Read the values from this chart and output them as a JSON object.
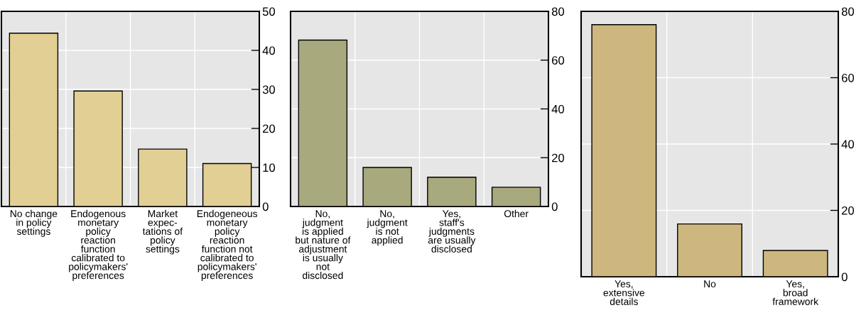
{
  "chart_data": [
    {
      "type": "bar",
      "categories": [
        "No change\nin policy\nsettings",
        "Endogenous\nmonetary\npolicy\nreaction\nfunction\ncalibrated to\npolicymakers'\npreferences",
        "Market\nexpec-\ntations of\npolicy\nsettings",
        "Endogeneous\nmonetary\npolicy\nreaction\nfunction not\ncalibrated to\npolicymakers'\npreferences"
      ],
      "values": [
        44.4,
        29.6,
        14.7,
        11.0
      ],
      "color": "#e2cf94",
      "ylim": [
        0,
        50
      ],
      "yticks": [
        0,
        10,
        20,
        30,
        40,
        50
      ],
      "grid": true
    },
    {
      "type": "bar",
      "categories": [
        "No,\njudgment\nis applied\nbut nature of\nadjustment\nis usually\nnot\ndisclosed",
        "No,\njudgment\nis not\napplied",
        "Yes,\nstaff's\njudgments\nare usually\ndisclosed",
        "Other"
      ],
      "values": [
        68.2,
        16.0,
        12.0,
        7.9
      ],
      "color": "#a8a97c",
      "ylim": [
        0,
        80
      ],
      "yticks": [
        0,
        20,
        40,
        60,
        80
      ],
      "grid": true
    },
    {
      "type": "bar",
      "categories": [
        "Yes,\nextensive\ndetails",
        "No",
        "Yes,\nbroad\nframework"
      ],
      "values": [
        76.0,
        15.9,
        7.9
      ],
      "color": "#cdb77e",
      "ylim": [
        0,
        80
      ],
      "yticks": [
        0,
        20,
        40,
        60,
        80
      ],
      "grid": true
    }
  ]
}
